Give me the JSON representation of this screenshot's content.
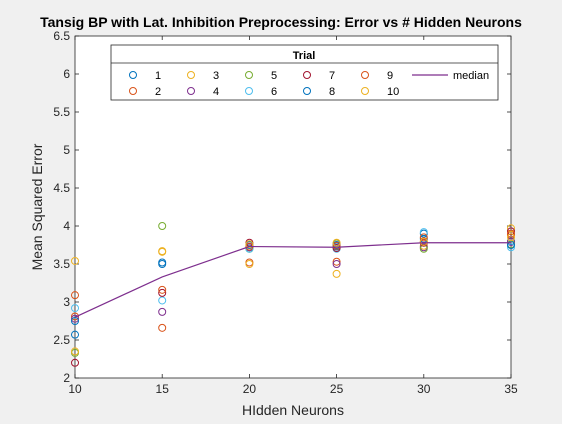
{
  "chart_data": {
    "type": "scatter",
    "title": "Tansig BP with Lat. Inhibition Preprocessing: Error vs # Hidden Neurons",
    "xlabel": "HIdden Neurons",
    "ylabel": "Mean Squared Error",
    "xlim": [
      10,
      35
    ],
    "ylim": [
      2,
      6.5
    ],
    "xticks": [
      "10",
      "15",
      "20",
      "25",
      "30",
      "35"
    ],
    "yticks": [
      "2",
      "2.5",
      "3",
      "3.5",
      "4",
      "4.5",
      "5",
      "5.5",
      "6",
      "6.5"
    ],
    "grid": false,
    "legend": {
      "title": "Trial",
      "placement": "top",
      "median_label": "median"
    },
    "colors": {
      "median": "#7E2F8E",
      "palette": [
        "#0072BD",
        "#D95319",
        "#EDB120",
        "#7E2F8E",
        "#77AC30",
        "#4DBEEE",
        "#A2142F",
        "#0072BD",
        "#D95319",
        "#EDB120"
      ]
    },
    "x": [
      10,
      15,
      20,
      25,
      30,
      35
    ],
    "series": [
      {
        "name": "1",
        "color": "#0072BD",
        "values": [
          2.57,
          3.52,
          3.72,
          3.73,
          3.9,
          3.8
        ]
      },
      {
        "name": "2",
        "color": "#D95319",
        "values": [
          2.81,
          2.66,
          3.52,
          3.53,
          3.8,
          3.88
        ]
      },
      {
        "name": "3",
        "color": "#EDB120",
        "values": [
          3.54,
          3.67,
          3.5,
          3.37,
          3.74,
          3.97
        ]
      },
      {
        "name": "4",
        "color": "#7E2F8E",
        "values": [
          2.78,
          2.87,
          3.72,
          3.5,
          3.72,
          3.79
        ]
      },
      {
        "name": "5",
        "color": "#77AC30",
        "values": [
          2.33,
          4.0,
          3.7,
          3.77,
          3.7,
          3.76
        ]
      },
      {
        "name": "6",
        "color": "#4DBEEE",
        "values": [
          2.92,
          3.02,
          3.7,
          3.7,
          3.92,
          3.72
        ]
      },
      {
        "name": "7",
        "color": "#A2142F",
        "values": [
          2.2,
          3.12,
          3.78,
          3.71,
          3.78,
          3.93
        ]
      },
      {
        "name": "8",
        "color": "#0072BD",
        "values": [
          2.75,
          3.5,
          3.75,
          3.75,
          3.83,
          3.75
        ]
      },
      {
        "name": "9",
        "color": "#D95319",
        "values": [
          3.09,
          3.16,
          3.73,
          3.74,
          3.85,
          3.9
        ]
      },
      {
        "name": "10",
        "color": "#EDB120",
        "values": [
          2.35,
          3.66,
          3.76,
          3.78,
          3.79,
          3.85
        ]
      }
    ],
    "median": [
      2.8,
      3.33,
      3.73,
      3.72,
      3.78,
      3.78
    ]
  }
}
